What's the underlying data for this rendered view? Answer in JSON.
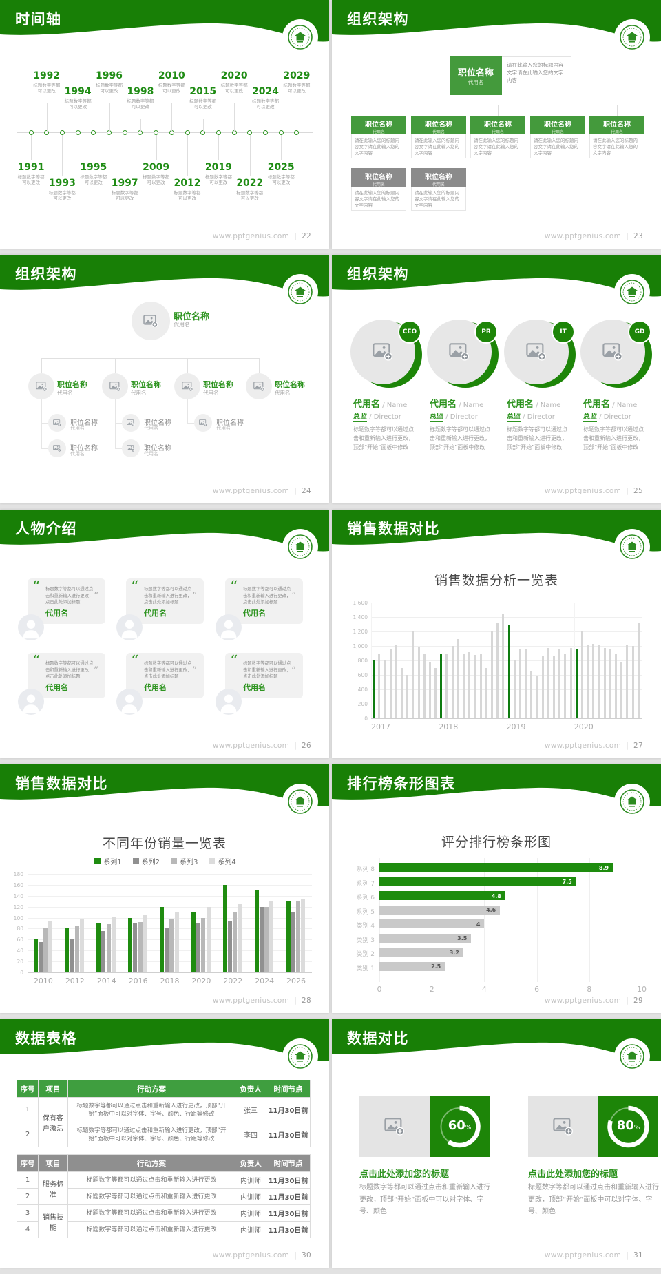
{
  "footer": {
    "site": "www.pptgenius.com",
    "separator": "|"
  },
  "colors": {
    "header_green": "#187f06",
    "accent_green": "#2e9420",
    "box_green": "#449a3c",
    "box_gray": "#8b8b8b",
    "dark_bar_green": "#0e7c10",
    "donut_green": "#1d8508",
    "light_gray_bar": "#d7d7d7"
  },
  "slides": [
    {
      "title": "时间轴",
      "page": "22"
    },
    {
      "title": "组织架构",
      "page": "23"
    },
    {
      "title": "组织架构",
      "page": "24"
    },
    {
      "title": "组织架构",
      "page": "25"
    },
    {
      "title": "人物介绍",
      "page": "26"
    },
    {
      "title": "销售数据对比",
      "page": "27"
    },
    {
      "title": "销售数据对比",
      "page": "28"
    },
    {
      "title": "排行榜条形图表",
      "page": "29"
    },
    {
      "title": "数据表格",
      "page": "30"
    },
    {
      "title": "数据对比",
      "page": "31"
    }
  ],
  "timeline": {
    "top_years": [
      "1992",
      "1994",
      "1996",
      "1998",
      "2010",
      "2015",
      "2020",
      "2024",
      "2029"
    ],
    "bottom_years": [
      "1991",
      "1993",
      "1995",
      "1997",
      "2009",
      "2012",
      "2019",
      "2022",
      "2025"
    ],
    "caption_lines": [
      "标题数字等都",
      "可以更改"
    ]
  },
  "org_chart_boxes": {
    "node_title": "职位名称",
    "node_subtitle": "代用名",
    "root_note": "请在此输入您的标题内容文字请在此输入您的文字内容",
    "node_desc": "请在此输入您的标题内容文字请在此输入您的文字内容",
    "green_children": 5,
    "gray_children": 2
  },
  "org_chart_photos": {
    "node_title": "职位名称",
    "node_subtitle": "代用名",
    "children": 3,
    "wide_child": "职位名称",
    "grandchildren_per_child": [
      2,
      2,
      1
    ]
  },
  "org_directors": {
    "badges": [
      "CEO",
      "PR",
      "IT",
      "GD"
    ],
    "name_cn": "代用名",
    "name_en": "Name",
    "role_cn": "总监",
    "role_en": "Director",
    "description": "标题数字等都可以通过点击和重新输入进行更改，顶部“开始”面板中修改"
  },
  "people_intro": {
    "cards": 6,
    "quote": "标题数字等都可以通过点击和重新输入进行更改，点击此处添加标题",
    "name": "代用名"
  },
  "chart_data": [
    {
      "type": "bar",
      "title": "销售数据分析一览表",
      "categories": [
        "2017",
        "2018",
        "2019",
        "2020"
      ],
      "bars_per_category": 12,
      "values": [
        800,
        900,
        810,
        950,
        1020,
        700,
        600,
        1200,
        980,
        890,
        780,
        700,
        890,
        900,
        1000,
        1100,
        900,
        910,
        880,
        900,
        700,
        1200,
        1310,
        1450,
        1300,
        810,
        950,
        960,
        660,
        590,
        860,
        975,
        860,
        950,
        890,
        975,
        960,
        1200,
        1020,
        1030,
        1020,
        975,
        960,
        885,
        780,
        1020,
        1000,
        1310
      ],
      "highlight_indices": [
        0,
        12,
        24,
        36
      ],
      "ylim": [
        0,
        1600
      ],
      "ytick_labels": [
        "0",
        "200",
        "400",
        "600",
        "800",
        "1,000",
        "1,200",
        "1,400",
        "1,600"
      ],
      "grid": true,
      "bar_color": "#d7d7d7",
      "highlight_color": "#0e7c10"
    },
    {
      "type": "bar",
      "title": "不同年份销量一览表",
      "categories": [
        "2010",
        "2012",
        "2014",
        "2016",
        "2018",
        "2020",
        "2022",
        "2024",
        "2026"
      ],
      "series": [
        {
          "name": "系列1",
          "color": "#1f8c10",
          "values": [
            60,
            80,
            90,
            100,
            120,
            110,
            160,
            150,
            130
          ]
        },
        {
          "name": "系列2",
          "color": "#909090",
          "values": [
            55,
            60,
            75,
            90,
            80,
            90,
            95,
            120,
            110
          ]
        },
        {
          "name": "系列3",
          "color": "#b8b8b8",
          "values": [
            80,
            85,
            88,
            92,
            98,
            100,
            110,
            120,
            130
          ]
        },
        {
          "name": "系列4",
          "color": "#dcdcdc",
          "values": [
            95,
            98,
            101,
            105,
            110,
            120,
            125,
            130,
            135
          ]
        }
      ],
      "ylim": [
        0,
        180
      ],
      "ytick_step": 20,
      "grid": true,
      "legend_position": "top"
    },
    {
      "type": "bar",
      "orientation": "horizontal",
      "title": "评分排行榜条形图",
      "categories": [
        "系列 8",
        "系列 7",
        "系列 6",
        "系列 5",
        "类别 4",
        "类别 3",
        "类别 2",
        "类别 1"
      ],
      "values": [
        8.9,
        7.5,
        4.8,
        4.6,
        4,
        3.5,
        3.2,
        2.5
      ],
      "value_labels": [
        "8.9",
        "7.5",
        "4.8",
        "4.6",
        "4",
        "3.5",
        "3.2",
        "2.5"
      ],
      "green_count": 3,
      "green_color": "#1e8c0e",
      "gray_color": "#c9c9c9",
      "xlim": [
        0,
        10
      ],
      "xticks": [
        "0",
        "2",
        "4",
        "6",
        "8",
        "10"
      ]
    }
  ],
  "data_tables": {
    "headers": [
      "序号",
      "项目",
      "行动方案",
      "负责人",
      "时间节点"
    ],
    "table1": {
      "theme_color": "#3f9e3f",
      "groups": [
        {
          "project": "保有客户激活",
          "rows": [
            {
              "no": "1",
              "plan": "标题数字等都可以通过点击和重新输入进行更改，顶部“开始”面板中可以对字体、字号、颜色、行距等修改",
              "owner": "张三",
              "deadline": "11月30日前"
            },
            {
              "no": "2",
              "plan": "标题数字等都可以通过点击和重新输入进行更改，顶部“开始”面板中可以对字体、字号、颜色、行距等修改",
              "owner": "李四",
              "deadline": "11月30日前"
            }
          ]
        }
      ]
    },
    "table2": {
      "theme_color": "#8f8f8f",
      "groups": [
        {
          "project": "服务标准",
          "rows": [
            {
              "no": "1",
              "plan": "标题数字等都可以通过点击和重新输入进行更改",
              "owner": "内训师",
              "deadline": "11月30日前"
            },
            {
              "no": "2",
              "plan": "标题数字等都可以通过点击和重新输入进行更改",
              "owner": "内训师",
              "deadline": "11月30日前"
            }
          ]
        },
        {
          "project": "销售技能",
          "rows": [
            {
              "no": "3",
              "plan": "标题数字等都可以通过点击和重新输入进行更改",
              "owner": "内训师",
              "deadline": "11月30日前"
            },
            {
              "no": "4",
              "plan": "标题数字等都可以通过点击和重新输入进行更改",
              "owner": "内训师",
              "deadline": "11月30日前"
            }
          ]
        }
      ]
    }
  },
  "data_compare": {
    "cards": [
      {
        "percent": 60,
        "percent_label": "60",
        "title": "点击此处添加您的标题",
        "body": "标题数字等都可以通过点击和重新输入进行更改，顶部“开始”面板中可以对字体、字号、颜色"
      },
      {
        "percent": 80,
        "percent_label": "80",
        "title": "点击此处添加您的标题",
        "body": "标题数字等都可以通过点击和重新输入进行更改，顶部“开始”面板中可以对字体、字号、颜色"
      }
    ]
  }
}
